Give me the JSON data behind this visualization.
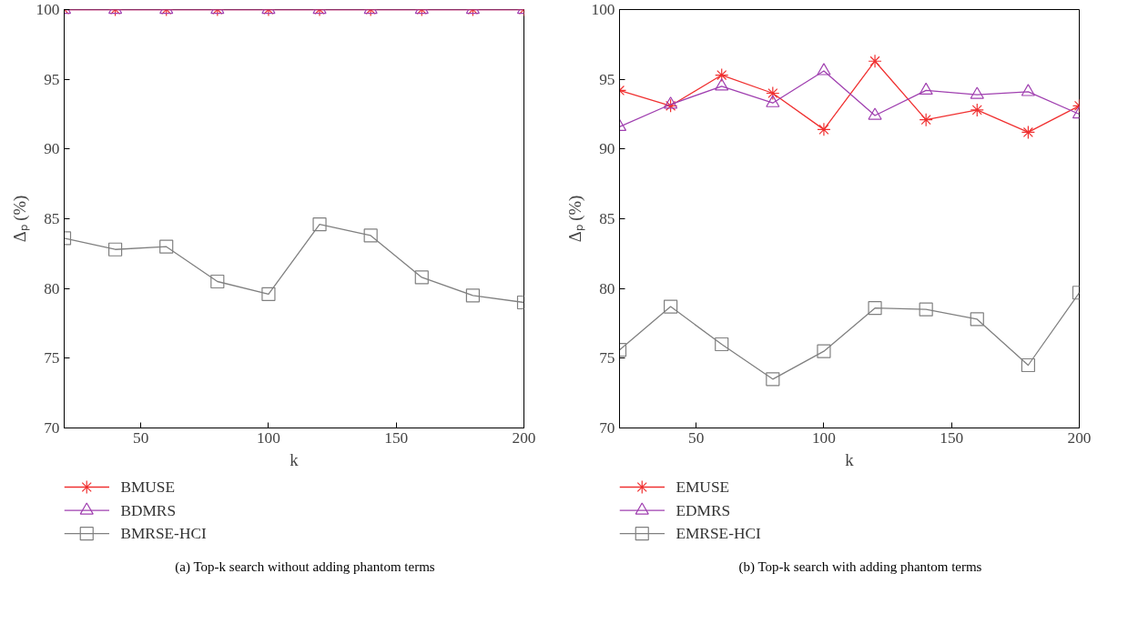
{
  "chart_data": [
    {
      "type": "line",
      "x": [
        20,
        40,
        60,
        80,
        100,
        120,
        140,
        160,
        180,
        200
      ],
      "xlabel": "k",
      "ylabel": "Δₚ (%)",
      "xlim": [
        20,
        200
      ],
      "xticks": [
        50,
        100,
        150,
        200
      ],
      "ylim": [
        70,
        100
      ],
      "yticks": [
        70,
        75,
        80,
        85,
        90,
        95,
        100
      ],
      "grid": false,
      "legend": "bottom",
      "annotations": [
        "(a) Top-k search without adding phantom terms"
      ],
      "series": [
        {
          "name": "BMUSE",
          "color": "#f03030",
          "marker": "cross",
          "values": [
            100,
            100,
            100,
            100,
            100,
            100,
            100,
            100,
            100,
            100
          ]
        },
        {
          "name": "BDMRS",
          "color": "#a040b0",
          "marker": "triangle",
          "values": [
            100,
            100,
            100,
            100,
            100,
            100,
            100,
            100,
            100,
            100
          ]
        },
        {
          "name": "BMRSE-HCI",
          "color": "#808080",
          "marker": "square",
          "values": [
            83.6,
            82.8,
            83.0,
            80.5,
            79.6,
            84.6,
            83.8,
            80.8,
            79.5,
            79.0
          ]
        }
      ]
    },
    {
      "type": "line",
      "x": [
        20,
        40,
        60,
        80,
        100,
        120,
        140,
        160,
        180,
        200
      ],
      "xlabel": "k",
      "ylabel": "Δₚ (%)",
      "xlim": [
        20,
        200
      ],
      "xticks": [
        50,
        100,
        150,
        200
      ],
      "ylim": [
        70,
        100
      ],
      "yticks": [
        70,
        75,
        80,
        85,
        90,
        95,
        100
      ],
      "grid": false,
      "legend": "bottom",
      "annotations": [
        "(b) Top-k search with adding phantom terms"
      ],
      "series": [
        {
          "name": "EMUSE",
          "color": "#f03030",
          "marker": "cross",
          "values": [
            94.2,
            93.1,
            95.3,
            94.0,
            91.4,
            96.3,
            92.1,
            92.8,
            91.2,
            93.1
          ]
        },
        {
          "name": "EDMRS",
          "color": "#a040b0",
          "marker": "triangle",
          "values": [
            91.6,
            93.2,
            94.5,
            93.3,
            95.6,
            92.4,
            94.2,
            93.9,
            94.1,
            92.5
          ]
        },
        {
          "name": "EMRSE-HCI",
          "color": "#808080",
          "marker": "square",
          "values": [
            75.6,
            78.7,
            76.0,
            73.5,
            75.5,
            78.6,
            78.5,
            77.8,
            74.5,
            79.7
          ]
        }
      ]
    }
  ]
}
